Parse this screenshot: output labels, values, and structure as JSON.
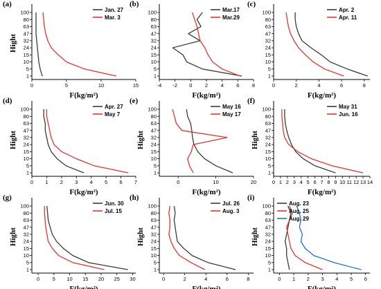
{
  "colors": {
    "black": "#3a3a3a",
    "red": "#e8322c",
    "blue": "#1f6fd1"
  },
  "chart_data": [
    {
      "type": "line",
      "panel": "(a)",
      "xlabel": "F(kg/m²)",
      "ylabel": "Hight",
      "xlim": [
        0,
        15
      ],
      "xticks": [
        0,
        5,
        10,
        15
      ],
      "legend": "top-right",
      "heights": [
        "1",
        "5",
        "10",
        "15",
        "24",
        "32",
        "47",
        "63",
        "80",
        "100"
      ],
      "series": [
        {
          "name": "Jan. 27",
          "color": "black",
          "values": [
            1.5,
            1.2,
            1.0,
            0.9,
            0.8,
            0.7,
            0.6,
            0.6,
            0.6,
            0.6
          ]
        },
        {
          "name": "Mar. 3",
          "color": "red",
          "values": [
            12.2,
            7.6,
            5.0,
            3.8,
            2.8,
            2.3,
            2.0,
            1.8,
            1.7,
            1.6
          ]
        }
      ]
    },
    {
      "type": "line",
      "panel": "(b)",
      "xlabel": "F(kg/m²)",
      "ylabel": "",
      "xlim": [
        -4,
        8
      ],
      "xticks": [
        -4,
        -2,
        0,
        2,
        4,
        6,
        8
      ],
      "legend": "top-right",
      "heights": [
        "1",
        "5",
        "10",
        "15",
        "24",
        "32",
        "47",
        "63",
        "80",
        "100"
      ],
      "series": [
        {
          "name": "Mar.17",
          "color": "black",
          "values": [
            6.5,
            1.5,
            -0.5,
            -1.0,
            -2.3,
            1.2,
            -0.3,
            1.3,
            0.8,
            1.5
          ]
        },
        {
          "name": "Mar.29",
          "color": "red",
          "values": [
            6.3,
            4.0,
            2.8,
            2.2,
            1.8,
            1.2,
            1.0,
            0.8,
            0.5,
            0.2
          ]
        }
      ]
    },
    {
      "type": "line",
      "panel": "(c)",
      "xlabel": "F(kg/m²)",
      "ylabel": "",
      "xlim": [
        0,
        8.5
      ],
      "xticks": [
        0,
        2,
        4,
        6,
        8
      ],
      "legend": "top-right",
      "heights": [
        "1",
        "5",
        "10",
        "15",
        "24",
        "32",
        "47",
        "63",
        "80",
        "100"
      ],
      "series": [
        {
          "name": "Apr. 2",
          "color": "black",
          "values": [
            8.3,
            6.5,
            5.0,
            4.2,
            3.3,
            2.5,
            2.2,
            2.0,
            1.9,
            1.9
          ]
        },
        {
          "name": "Apr. 11",
          "color": "red",
          "values": [
            6.2,
            4.5,
            3.5,
            2.8,
            2.2,
            1.8,
            1.5,
            1.3,
            1.2,
            1.1
          ]
        }
      ]
    },
    {
      "type": "line",
      "panel": "(d)",
      "xlabel": "F(kg/m²)",
      "ylabel": "Hight",
      "xlim": [
        0,
        7
      ],
      "xticks": [
        0,
        1,
        2,
        3,
        4,
        5,
        6,
        7
      ],
      "legend": "top-right",
      "heights": [
        "1",
        "5",
        "10",
        "15",
        "24",
        "32",
        "47",
        "63",
        "80",
        "100"
      ],
      "series": [
        {
          "name": "Apr. 27",
          "color": "black",
          "values": [
            3.5,
            2.3,
            1.7,
            1.3,
            1.1,
            1.0,
            0.9,
            0.9,
            0.8,
            0.8
          ]
        },
        {
          "name": "May 7",
          "color": "red",
          "values": [
            6.5,
            4.2,
            3.0,
            2.0,
            1.5,
            1.3,
            1.2,
            1.1,
            1.0,
            1.0
          ]
        }
      ]
    },
    {
      "type": "line",
      "panel": "(e)",
      "xlabel": "F(kg/m²)",
      "ylabel": "Hight",
      "xlim": [
        -5,
        20
      ],
      "xticks": [
        0,
        10,
        20
      ],
      "legend": "top-right",
      "heights": [
        "1",
        "5",
        "10",
        "15",
        "24",
        "32",
        "47",
        "63",
        "80",
        "100"
      ],
      "series": [
        {
          "name": "May 16",
          "color": "black",
          "values": [
            14.5,
            10.0,
            7.0,
            5.2,
            4.2,
            3.8,
            3.6,
            3.3,
            2.5,
            2.2
          ]
        },
        {
          "name": "May 17",
          "color": "red",
          "values": [
            4.0,
            3.0,
            2.5,
            3.5,
            4.0,
            13.0,
            1.0,
            -0.5,
            -1.0,
            -1.5
          ]
        }
      ]
    },
    {
      "type": "line",
      "panel": "(f)",
      "xlabel": "F(kg/m²)",
      "ylabel": "Hight",
      "xlim": [
        0,
        14
      ],
      "xticks": [
        0,
        1,
        2,
        3,
        4,
        5,
        6,
        7,
        8,
        9,
        10,
        11,
        12,
        13,
        14
      ],
      "legend": "top-right",
      "heights": [
        "1",
        "5",
        "10",
        "15",
        "24",
        "32",
        "47",
        "63",
        "80",
        "100"
      ],
      "series": [
        {
          "name": "May 31",
          "color": "black",
          "values": [
            9.0,
            6.0,
            4.3,
            3.2,
            2.6,
            2.2,
            1.9,
            1.7,
            1.6,
            1.6
          ]
        },
        {
          "name": "Jun. 16",
          "color": "red",
          "values": [
            13.0,
            8.5,
            5.5,
            3.5,
            2.2,
            1.6,
            1.4,
            1.3,
            1.2,
            1.2
          ]
        }
      ]
    },
    {
      "type": "line",
      "panel": "(g)",
      "xlabel": "F(kg/m²)",
      "ylabel": "Hight",
      "xlim": [
        -2,
        31
      ],
      "xticks": [
        0,
        5,
        10,
        15,
        20,
        25,
        30
      ],
      "legend": "top-right",
      "heights": [
        "1",
        "5",
        "10",
        "15",
        "24",
        "32",
        "47",
        "63",
        "80",
        "100"
      ],
      "series": [
        {
          "name": "Jun. 30",
          "color": "black",
          "values": [
            28.5,
            16.0,
            11.0,
            8.0,
            5.8,
            4.5,
            3.8,
            3.2,
            3.0,
            2.8
          ]
        },
        {
          "name": "Jul. 15",
          "color": "red",
          "values": [
            21.0,
            11.0,
            6.5,
            4.5,
            3.2,
            2.8,
            2.4,
            2.2,
            2.0,
            2.0
          ]
        }
      ]
    },
    {
      "type": "line",
      "panel": "(h)",
      "xlabel": "F(kg/m²)",
      "ylabel": "Hight",
      "xlim": [
        -0.4,
        8.5
      ],
      "xticks": [
        0,
        2,
        4,
        6,
        8
      ],
      "legend": "top-right",
      "heights": [
        "1",
        "5",
        "10",
        "15",
        "24",
        "32",
        "47",
        "63",
        "80",
        "100"
      ],
      "series": [
        {
          "name": "Jul. 26",
          "color": "black",
          "values": [
            6.8,
            4.2,
            2.7,
            1.9,
            1.3,
            1.2,
            1.1,
            1.0,
            1.1,
            1.0
          ]
        },
        {
          "name": "Aug. 3",
          "color": "red",
          "values": [
            3.9,
            2.6,
            1.5,
            1.0,
            0.7,
            0.5,
            0.6,
            0.6,
            0.5,
            0.6
          ]
        }
      ]
    },
    {
      "type": "line",
      "panel": "(i)",
      "xlabel": "F(kg/m²)",
      "ylabel": "Hight",
      "xlim": [
        -0.4,
        6.3
      ],
      "xticks": [
        0,
        1,
        2,
        3,
        4,
        5,
        6
      ],
      "legend": "top-left",
      "heights": [
        "1",
        "5",
        "10",
        "15",
        "24",
        "32",
        "47",
        "63",
        "80",
        "100"
      ],
      "series": [
        {
          "name": "Aug. 23",
          "color": "black",
          "values": [
            0.7,
            0.6,
            0.5,
            0.5,
            0.4,
            0.5,
            0.6,
            0.7,
            0.8,
            0.6
          ]
        },
        {
          "name": "Aug. 25",
          "color": "red",
          "values": [
            3.0,
            1.8,
            1.1,
            0.8,
            0.7,
            0.6,
            0.5,
            0.7,
            0.9,
            0.7
          ]
        },
        {
          "name": "Aug. 29",
          "color": "blue",
          "values": [
            5.7,
            3.8,
            2.4,
            1.8,
            1.5,
            1.6,
            1.4,
            1.5,
            1.4,
            1.2
          ]
        }
      ]
    }
  ]
}
